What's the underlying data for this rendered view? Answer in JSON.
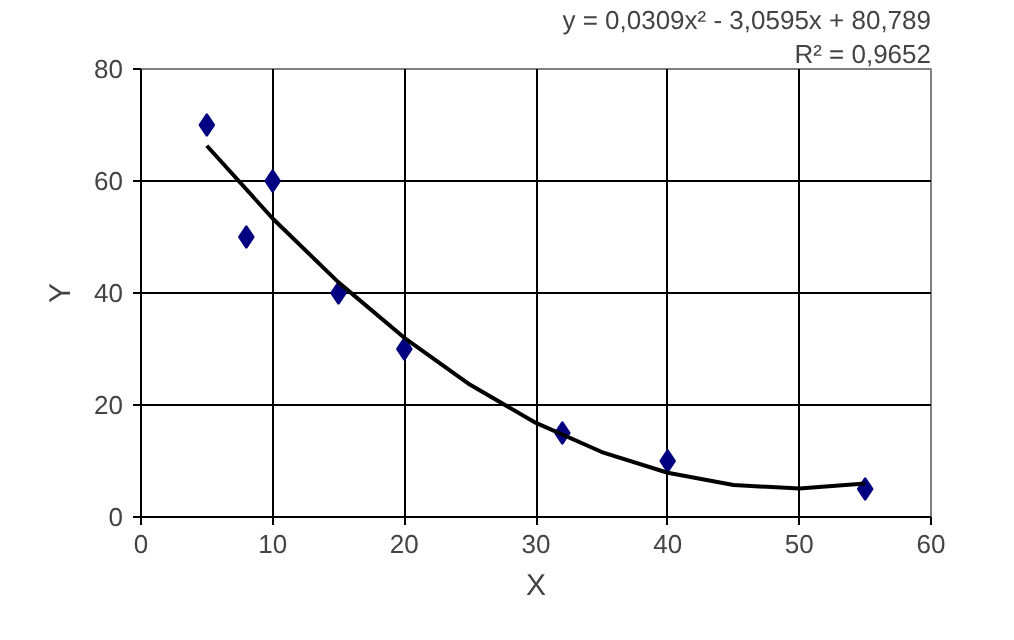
{
  "chart_data": {
    "type": "scatter",
    "xlabel": "X",
    "ylabel": "Y",
    "xlim": [
      0,
      60
    ],
    "xticks": [
      0,
      10,
      20,
      30,
      40,
      50,
      60
    ],
    "ylim": [
      0,
      80
    ],
    "yticks": [
      0,
      20,
      40,
      60,
      80
    ],
    "grid": true,
    "marker": "diamond",
    "x": [
      5,
      8,
      10,
      15,
      20,
      32,
      40,
      55
    ],
    "series": [
      {
        "color": "#000080",
        "values": [
          70,
          50,
          60,
          40,
          30,
          15,
          10,
          5
        ]
      },
      {
        "type": "line",
        "color": "#000000",
        "marker": "none",
        "x": [
          5,
          10,
          15,
          20,
          25,
          30,
          35,
          40,
          45,
          50,
          55
        ],
        "values": [
          66.3,
          53.3,
          41.9,
          32.0,
          23.6,
          16.8,
          11.6,
          7.9,
          5.7,
          5.1,
          6.0
        ]
      }
    ],
    "annotations": [
      "y = 0,0309x² - 3,0595x + 80,789",
      "R² = 0,9652"
    ]
  }
}
